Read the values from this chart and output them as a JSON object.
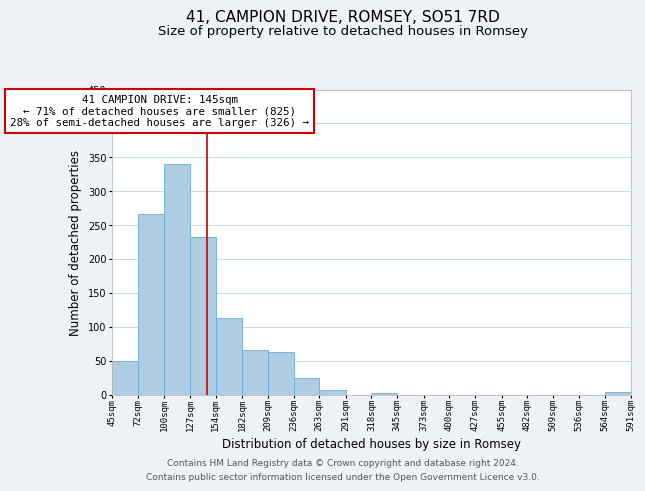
{
  "title": "41, CAMPION DRIVE, ROMSEY, SO51 7RD",
  "subtitle": "Size of property relative to detached houses in Romsey",
  "xlabel": "Distribution of detached houses by size in Romsey",
  "ylabel": "Number of detached properties",
  "bar_edges": [
    45,
    72,
    100,
    127,
    154,
    182,
    209,
    236,
    263,
    291,
    318,
    345,
    373,
    400,
    427,
    455,
    482,
    509,
    536,
    564,
    591
  ],
  "bar_heights": [
    50,
    267,
    340,
    232,
    113,
    65,
    62,
    25,
    7,
    0,
    2,
    0,
    0,
    0,
    0,
    0,
    0,
    0,
    0,
    3
  ],
  "bar_color": "#aecde3",
  "bar_edge_color": "#6aafd4",
  "property_line_x": 145,
  "property_line_color": "#cc0000",
  "annotation_title": "41 CAMPION DRIVE: 145sqm",
  "annotation_line1": "← 71% of detached houses are smaller (825)",
  "annotation_line2": "28% of semi-detached houses are larger (326) →",
  "annotation_box_facecolor": "#ffffff",
  "annotation_box_edgecolor": "#cc0000",
  "ylim": [
    0,
    450
  ],
  "xlim": [
    45,
    591
  ],
  "yticks": [
    0,
    50,
    100,
    150,
    200,
    250,
    300,
    350,
    400,
    450
  ],
  "tick_labels": [
    "45sqm",
    "72sqm",
    "100sqm",
    "127sqm",
    "154sqm",
    "182sqm",
    "209sqm",
    "236sqm",
    "263sqm",
    "291sqm",
    "318sqm",
    "345sqm",
    "373sqm",
    "400sqm",
    "427sqm",
    "455sqm",
    "482sqm",
    "509sqm",
    "536sqm",
    "564sqm",
    "591sqm"
  ],
  "tick_positions": [
    45,
    72,
    100,
    127,
    154,
    182,
    209,
    236,
    263,
    291,
    318,
    345,
    373,
    400,
    427,
    455,
    482,
    509,
    536,
    564,
    591
  ],
  "footer_line1": "Contains HM Land Registry data © Crown copyright and database right 2024.",
  "footer_line2": "Contains public sector information licensed under the Open Government Licence v3.0.",
  "background_color": "#eef2f7",
  "plot_background_color": "#ffffff",
  "grid_color": "#c8d8e8",
  "title_fontsize": 11,
  "subtitle_fontsize": 9.5,
  "axis_label_fontsize": 8.5,
  "tick_fontsize": 6.5,
  "annotation_fontsize": 7.8,
  "footer_fontsize": 6.5
}
